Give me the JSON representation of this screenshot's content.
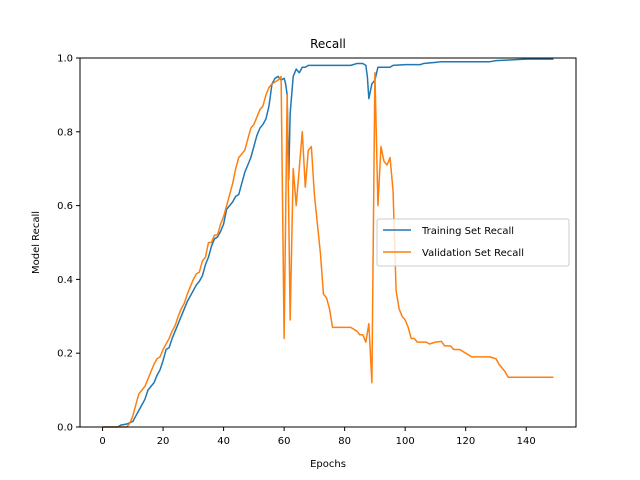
{
  "chart_data": {
    "type": "line",
    "title": "Recall",
    "xlabel": "Epochs",
    "ylabel": "Model Recall",
    "xlim": [
      -7.45,
      156.45
    ],
    "ylim": [
      0.0,
      1.0
    ],
    "xticks": [
      0,
      20,
      40,
      60,
      80,
      100,
      120,
      140
    ],
    "yticks": [
      0.0,
      0.2,
      0.4,
      0.6,
      0.8,
      1.0
    ],
    "xtick_labels": [
      "0",
      "20",
      "40",
      "60",
      "80",
      "100",
      "120",
      "140"
    ],
    "ytick_labels": [
      "0.0",
      "0.2",
      "0.4",
      "0.6",
      "0.8",
      "1.0"
    ],
    "grid": false,
    "legend_position": "center-right",
    "series": [
      {
        "name": "Training Set Recall",
        "color": "#1f77b4",
        "points": [
          [
            0,
            0.0
          ],
          [
            5,
            0.0
          ],
          [
            6,
            0.005
          ],
          [
            8,
            0.008
          ],
          [
            10,
            0.015
          ],
          [
            11,
            0.03
          ],
          [
            12,
            0.045
          ],
          [
            13,
            0.06
          ],
          [
            14,
            0.075
          ],
          [
            15,
            0.1
          ],
          [
            16,
            0.11
          ],
          [
            17,
            0.12
          ],
          [
            18,
            0.14
          ],
          [
            19,
            0.155
          ],
          [
            20,
            0.18
          ],
          [
            21,
            0.21
          ],
          [
            22,
            0.215
          ],
          [
            23,
            0.24
          ],
          [
            24,
            0.26
          ],
          [
            25,
            0.28
          ],
          [
            26,
            0.3
          ],
          [
            27,
            0.32
          ],
          [
            28,
            0.34
          ],
          [
            29,
            0.355
          ],
          [
            30,
            0.37
          ],
          [
            31,
            0.385
          ],
          [
            32,
            0.395
          ],
          [
            33,
            0.41
          ],
          [
            34,
            0.44
          ],
          [
            35,
            0.46
          ],
          [
            36,
            0.49
          ],
          [
            37,
            0.51
          ],
          [
            38,
            0.515
          ],
          [
            39,
            0.53
          ],
          [
            40,
            0.55
          ],
          [
            41,
            0.59
          ],
          [
            42,
            0.6
          ],
          [
            43,
            0.61
          ],
          [
            44,
            0.625
          ],
          [
            45,
            0.63
          ],
          [
            46,
            0.66
          ],
          [
            47,
            0.69
          ],
          [
            48,
            0.71
          ],
          [
            49,
            0.73
          ],
          [
            50,
            0.76
          ],
          [
            51,
            0.79
          ],
          [
            52,
            0.81
          ],
          [
            53,
            0.82
          ],
          [
            54,
            0.835
          ],
          [
            55,
            0.87
          ],
          [
            56,
            0.93
          ],
          [
            57,
            0.945
          ],
          [
            58,
            0.95
          ],
          [
            59,
            0.94
          ],
          [
            60,
            0.945
          ],
          [
            60.5,
            0.93
          ],
          [
            61,
            0.9
          ],
          [
            61.5,
            0.67
          ],
          [
            62,
            0.85
          ],
          [
            63,
            0.95
          ],
          [
            64,
            0.97
          ],
          [
            65,
            0.96
          ],
          [
            66,
            0.975
          ],
          [
            67,
            0.975
          ],
          [
            68,
            0.98
          ],
          [
            70,
            0.98
          ],
          [
            80,
            0.98
          ],
          [
            82,
            0.98
          ],
          [
            84,
            0.985
          ],
          [
            86,
            0.985
          ],
          [
            87,
            0.98
          ],
          [
            87.5,
            0.95
          ],
          [
            88,
            0.89
          ],
          [
            89,
            0.93
          ],
          [
            90,
            0.94
          ],
          [
            91,
            0.975
          ],
          [
            92,
            0.975
          ],
          [
            95,
            0.975
          ],
          [
            96,
            0.98
          ],
          [
            100,
            0.982
          ],
          [
            105,
            0.982
          ],
          [
            106,
            0.985
          ],
          [
            110,
            0.988
          ],
          [
            112,
            0.99
          ],
          [
            120,
            0.99
          ],
          [
            128,
            0.99
          ],
          [
            130,
            0.993
          ],
          [
            135,
            0.995
          ],
          [
            140,
            0.997
          ],
          [
            149,
            0.997
          ]
        ]
      },
      {
        "name": "Validation Set Recall",
        "color": "#ff7f0e",
        "points": [
          [
            0,
            0.0
          ],
          [
            8,
            0.0
          ],
          [
            9,
            0.01
          ],
          [
            10,
            0.03
          ],
          [
            11,
            0.06
          ],
          [
            12,
            0.09
          ],
          [
            13,
            0.1
          ],
          [
            14,
            0.11
          ],
          [
            15,
            0.13
          ],
          [
            16,
            0.15
          ],
          [
            17,
            0.17
          ],
          [
            18,
            0.185
          ],
          [
            19,
            0.19
          ],
          [
            20,
            0.21
          ],
          [
            21,
            0.225
          ],
          [
            22,
            0.24
          ],
          [
            23,
            0.26
          ],
          [
            24,
            0.275
          ],
          [
            25,
            0.3
          ],
          [
            26,
            0.32
          ],
          [
            27,
            0.335
          ],
          [
            28,
            0.36
          ],
          [
            29,
            0.38
          ],
          [
            30,
            0.4
          ],
          [
            31,
            0.415
          ],
          [
            32,
            0.42
          ],
          [
            33,
            0.45
          ],
          [
            34,
            0.46
          ],
          [
            35,
            0.5
          ],
          [
            36,
            0.5
          ],
          [
            37,
            0.52
          ],
          [
            38,
            0.52
          ],
          [
            39,
            0.55
          ],
          [
            40,
            0.57
          ],
          [
            41,
            0.6
          ],
          [
            42,
            0.63
          ],
          [
            43,
            0.66
          ],
          [
            44,
            0.7
          ],
          [
            45,
            0.73
          ],
          [
            46,
            0.74
          ],
          [
            47,
            0.75
          ],
          [
            48,
            0.78
          ],
          [
            49,
            0.81
          ],
          [
            50,
            0.82
          ],
          [
            51,
            0.84
          ],
          [
            52,
            0.86
          ],
          [
            53,
            0.87
          ],
          [
            54,
            0.9
          ],
          [
            55,
            0.92
          ],
          [
            56,
            0.93
          ],
          [
            57,
            0.935
          ],
          [
            58,
            0.94
          ],
          [
            59,
            0.95
          ],
          [
            60,
            0.24
          ],
          [
            61,
            0.9
          ],
          [
            62,
            0.29
          ],
          [
            63,
            0.7
          ],
          [
            64,
            0.6
          ],
          [
            65,
            0.7
          ],
          [
            66,
            0.8
          ],
          [
            67,
            0.65
          ],
          [
            68,
            0.75
          ],
          [
            69,
            0.76
          ],
          [
            70,
            0.63
          ],
          [
            71,
            0.55
          ],
          [
            72,
            0.47
          ],
          [
            73,
            0.36
          ],
          [
            74,
            0.35
          ],
          [
            75,
            0.32
          ],
          [
            76,
            0.27
          ],
          [
            78,
            0.27
          ],
          [
            82,
            0.27
          ],
          [
            84,
            0.26
          ],
          [
            85,
            0.25
          ],
          [
            86,
            0.25
          ],
          [
            87,
            0.23
          ],
          [
            88,
            0.28
          ],
          [
            88.5,
            0.2
          ],
          [
            89,
            0.12
          ],
          [
            90,
            0.96
          ],
          [
            91,
            0.6
          ],
          [
            92,
            0.76
          ],
          [
            93,
            0.72
          ],
          [
            94,
            0.71
          ],
          [
            95,
            0.73
          ],
          [
            96,
            0.64
          ],
          [
            97,
            0.37
          ],
          [
            98,
            0.32
          ],
          [
            99,
            0.3
          ],
          [
            100,
            0.29
          ],
          [
            101,
            0.27
          ],
          [
            102,
            0.24
          ],
          [
            103,
            0.24
          ],
          [
            104,
            0.23
          ],
          [
            107,
            0.23
          ],
          [
            108,
            0.225
          ],
          [
            110,
            0.23
          ],
          [
            112,
            0.232
          ],
          [
            113,
            0.22
          ],
          [
            115,
            0.22
          ],
          [
            116,
            0.21
          ],
          [
            118,
            0.21
          ],
          [
            120,
            0.2
          ],
          [
            122,
            0.19
          ],
          [
            125,
            0.19
          ],
          [
            128,
            0.19
          ],
          [
            130,
            0.185
          ],
          [
            131,
            0.17
          ],
          [
            133,
            0.15
          ],
          [
            134,
            0.135
          ],
          [
            136,
            0.135
          ],
          [
            149,
            0.135
          ]
        ]
      }
    ]
  }
}
